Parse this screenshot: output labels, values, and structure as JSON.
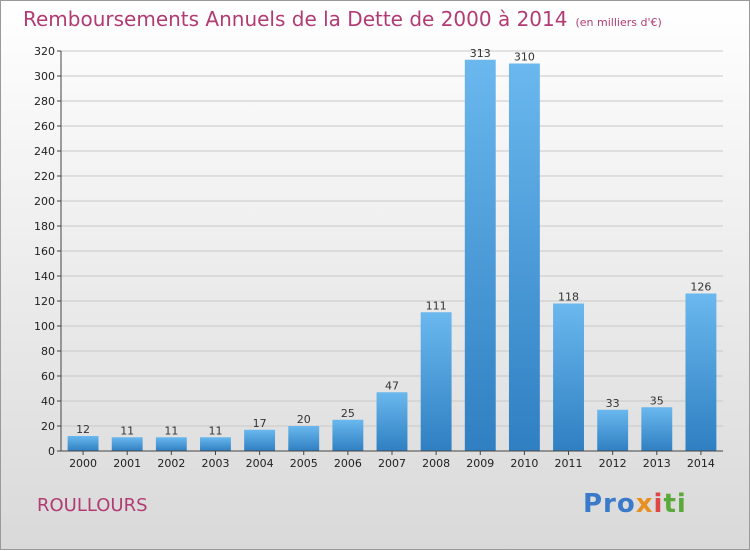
{
  "chart_data": {
    "type": "bar",
    "title": "Remboursements Annuels de la Dette de 2000 à 2014",
    "unit": "(en milliers d'€)",
    "categories": [
      "2000",
      "2001",
      "2002",
      "2003",
      "2004",
      "2005",
      "2006",
      "2007",
      "2008",
      "2009",
      "2010",
      "2011",
      "2012",
      "2013",
      "2014"
    ],
    "values": [
      12,
      11,
      11,
      11,
      17,
      20,
      25,
      47,
      111,
      313,
      310,
      118,
      33,
      35,
      126
    ],
    "ylim": [
      0,
      320
    ],
    "yticks": [
      0,
      20,
      40,
      60,
      80,
      100,
      120,
      140,
      160,
      180,
      200,
      220,
      240,
      260,
      280,
      300,
      320
    ],
    "grid": true,
    "bar_color": "#5aaee6"
  },
  "commune": "ROULLOURS",
  "logo": {
    "p1": "Pro",
    "p2": "x",
    "p3": "i",
    "p4": "ti"
  }
}
